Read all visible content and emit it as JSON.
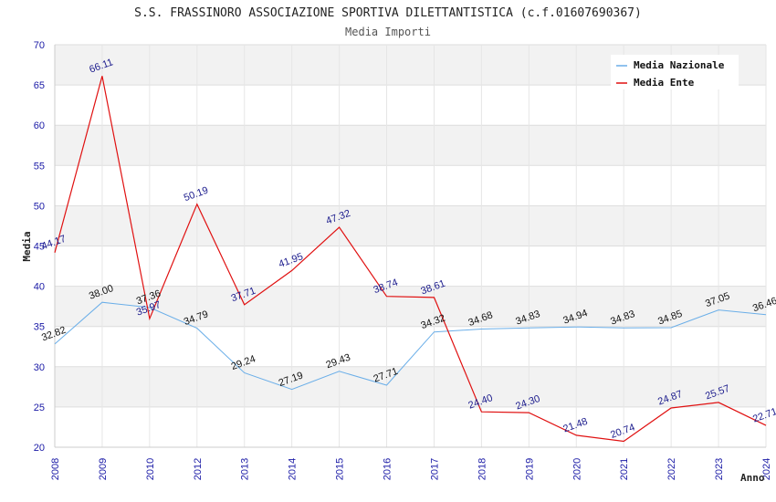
{
  "title": "S.S. FRASSINORO ASSOCIAZIONE SPORTIVA DILETTANTISTICA (c.f.01607690367)",
  "subtitle": "Media Importi",
  "chart_data": {
    "type": "line",
    "title": "S.S. FRASSINORO ASSOCIAZIONE SPORTIVA DILETTANTISTICA (c.f.01607690367)",
    "subtitle": "Media Importi",
    "xlabel": "Anno",
    "ylabel": "Media",
    "ylim": [
      20,
      70
    ],
    "yticks": [
      "20",
      "25",
      "30",
      "35",
      "40",
      "45",
      "50",
      "55",
      "60",
      "65",
      "70"
    ],
    "categories": [
      "2008",
      "2009",
      "2010",
      "2012",
      "2013",
      "2014",
      "2015",
      "2016",
      "2017",
      "2018",
      "2019",
      "2020",
      "2021",
      "2022",
      "2023",
      "2024"
    ],
    "grid": true,
    "legend_position": "top-right",
    "series": [
      {
        "name": "Media Nazionale",
        "color": "#6aaee8",
        "label_color": "#111111",
        "values": [
          32.82,
          38.0,
          37.36,
          34.79,
          29.24,
          27.19,
          29.43,
          27.71,
          34.32,
          34.68,
          34.83,
          34.94,
          34.83,
          34.85,
          37.05,
          36.46
        ],
        "labels": [
          "32.82",
          "38.00",
          "37.36",
          "34.79",
          "29.24",
          "27.19",
          "29.43",
          "27.71",
          "34.32",
          "34.68",
          "34.83",
          "34.94",
          "34.83",
          "34.85",
          "37.05",
          "36.46"
        ]
      },
      {
        "name": "Media Ente",
        "color": "#e01010",
        "label_color": "#1a1a8c",
        "values": [
          44.17,
          66.11,
          35.97,
          50.19,
          37.71,
          41.95,
          47.32,
          38.74,
          38.61,
          24.4,
          24.3,
          21.48,
          20.74,
          24.87,
          25.57,
          22.71
        ],
        "labels": [
          "44.17",
          "66.11",
          "35.97",
          "50.19",
          "37.71",
          "41.95",
          "47.32",
          "38.74",
          "38.61",
          "24.40",
          "24.30",
          "21.48",
          "20.74",
          "24.87",
          "25.57",
          "22.71"
        ]
      }
    ]
  }
}
